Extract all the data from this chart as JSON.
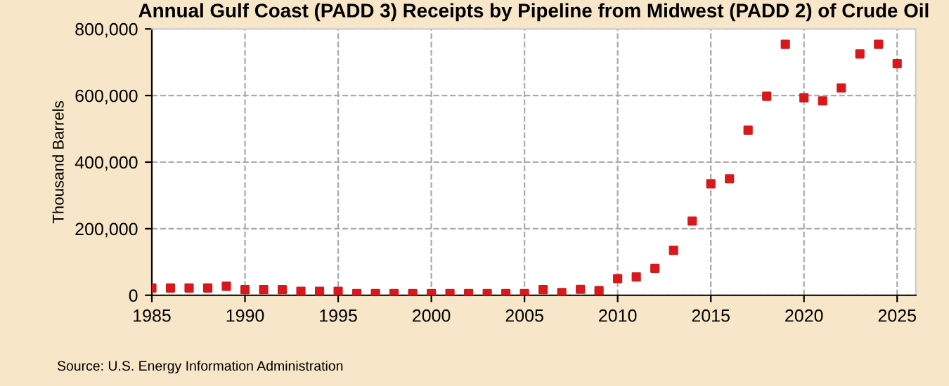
{
  "chart_data": {
    "type": "scatter",
    "title": "Annual Gulf Coast (PADD 3) Receipts by Pipeline from Midwest (PADD 2) of Crude Oil",
    "ylabel": "Thousand Barrels",
    "x": [
      1985,
      1986,
      1987,
      1988,
      1989,
      1990,
      1991,
      1992,
      1993,
      1994,
      1995,
      1996,
      1997,
      1998,
      1999,
      2000,
      2001,
      2002,
      2003,
      2004,
      2005,
      2006,
      2007,
      2008,
      2009,
      2010,
      2011,
      2012,
      2013,
      2014,
      2015,
      2016,
      2017,
      2018,
      2019,
      2020,
      2021,
      2022,
      2023,
      2024,
      2025
    ],
    "series": [
      {
        "color": "#d7191c",
        "values": [
          22000,
          22000,
          22000,
          22000,
          27000,
          17000,
          17000,
          17000,
          12000,
          12000,
          12000,
          5000,
          5000,
          5000,
          5000,
          5000,
          5000,
          5000,
          5000,
          5000,
          5000,
          17000,
          8000,
          18000,
          14000,
          50000,
          55000,
          81000,
          135000,
          223000,
          335000,
          350000,
          496000,
          598000,
          754000,
          593000,
          584000,
          623000,
          725000,
          754000,
          696000
        ]
      }
    ],
    "xlim": [
      1985,
      2026
    ],
    "xticks": [
      1985,
      1990,
      1995,
      2000,
      2005,
      2010,
      2015,
      2020,
      2025
    ],
    "ylim": [
      0,
      800000
    ],
    "yticks": [
      {
        "value": 0,
        "label": "0"
      },
      {
        "value": 200000,
        "label": "200,000"
      },
      {
        "value": 400000,
        "label": "400,000"
      },
      {
        "value": 600000,
        "label": "600,000"
      },
      {
        "value": 800000,
        "label": "800,000"
      }
    ],
    "grid": true,
    "marker": "square",
    "legend": false,
    "annotations": [
      "Source: U.S. Energy Information Administration"
    ]
  }
}
